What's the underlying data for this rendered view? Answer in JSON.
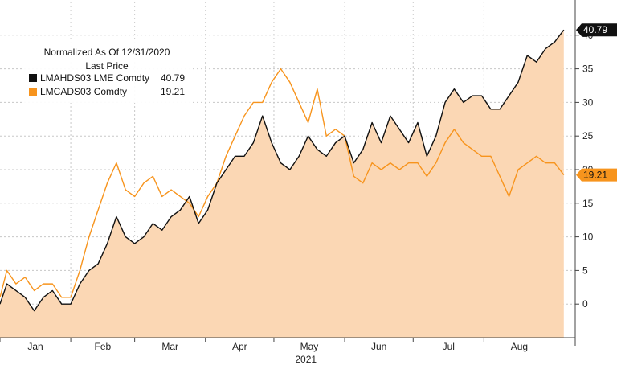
{
  "chart_data": {
    "type": "area",
    "title": "",
    "xlabel": "2021",
    "ylabel": "",
    "ylim": [
      -5,
      45
    ],
    "yticks": [
      0,
      5,
      10,
      15,
      20,
      25,
      30,
      35,
      40
    ],
    "months": [
      "Jan",
      "Feb",
      "Mar",
      "Apr",
      "May",
      "Jun",
      "Jul",
      "Aug"
    ],
    "x_start": "2021-01-01",
    "x_end": "2021-09-10",
    "grid": true,
    "legend_position": "top-left",
    "legend": {
      "header": [
        "Normalized As Of 12/31/2020",
        "Last Price"
      ],
      "entries": [
        {
          "label": "LMAHDS03 LME Comdty",
          "value": "40.79",
          "color": "#111111"
        },
        {
          "label": "LMCADS03 Comdty",
          "value": "19.21",
          "color": "#f7941d"
        }
      ]
    },
    "colors": {
      "aluminium_line": "#111111",
      "area_fill": "#fbd7b4",
      "copper_line": "#f7941d"
    },
    "series": [
      {
        "name": "LMAHDS03 LME Comdty",
        "last_value": "40.79",
        "dates": [
          "2021-01-01",
          "2021-01-04",
          "2021-01-08",
          "2021-01-12",
          "2021-01-16",
          "2021-01-20",
          "2021-01-24",
          "2021-01-28",
          "2021-02-01",
          "2021-02-05",
          "2021-02-09",
          "2021-02-13",
          "2021-02-17",
          "2021-02-21",
          "2021-02-25",
          "2021-03-01",
          "2021-03-05",
          "2021-03-09",
          "2021-03-13",
          "2021-03-17",
          "2021-03-21",
          "2021-03-25",
          "2021-03-29",
          "2021-04-02",
          "2021-04-06",
          "2021-04-10",
          "2021-04-14",
          "2021-04-18",
          "2021-04-22",
          "2021-04-26",
          "2021-04-30",
          "2021-05-04",
          "2021-05-08",
          "2021-05-12",
          "2021-05-16",
          "2021-05-20",
          "2021-05-24",
          "2021-05-28",
          "2021-06-01",
          "2021-06-05",
          "2021-06-09",
          "2021-06-13",
          "2021-06-17",
          "2021-06-21",
          "2021-06-25",
          "2021-06-29",
          "2021-07-03",
          "2021-07-07",
          "2021-07-11",
          "2021-07-15",
          "2021-07-19",
          "2021-07-23",
          "2021-07-27",
          "2021-07-31",
          "2021-08-04",
          "2021-08-08",
          "2021-08-12",
          "2021-08-16",
          "2021-08-20",
          "2021-08-24",
          "2021-08-28",
          "2021-09-01",
          "2021-09-05"
        ],
        "values": [
          0,
          3,
          2,
          1,
          -1,
          1,
          2,
          0,
          0,
          3,
          5,
          6,
          9,
          13,
          10,
          9,
          10,
          12,
          11,
          13,
          14,
          16,
          12,
          14,
          18,
          20,
          22,
          22,
          24,
          28,
          24,
          21,
          20,
          22,
          25,
          23,
          22,
          24,
          25,
          21,
          23,
          27,
          24,
          28,
          26,
          24,
          27,
          22,
          25,
          30,
          32,
          30,
          31,
          31,
          29,
          29,
          31,
          33,
          37,
          36,
          38,
          39,
          40.79
        ]
      },
      {
        "name": "LMCADS03 Comdty",
        "last_value": "19.21",
        "dates": [
          "2021-01-01",
          "2021-01-04",
          "2021-01-08",
          "2021-01-12",
          "2021-01-16",
          "2021-01-20",
          "2021-01-24",
          "2021-01-28",
          "2021-02-01",
          "2021-02-05",
          "2021-02-09",
          "2021-02-13",
          "2021-02-17",
          "2021-02-21",
          "2021-02-25",
          "2021-03-01",
          "2021-03-05",
          "2021-03-09",
          "2021-03-13",
          "2021-03-17",
          "2021-03-21",
          "2021-03-25",
          "2021-03-29",
          "2021-04-02",
          "2021-04-06",
          "2021-04-10",
          "2021-04-14",
          "2021-04-18",
          "2021-04-22",
          "2021-04-26",
          "2021-04-30",
          "2021-05-04",
          "2021-05-08",
          "2021-05-12",
          "2021-05-16",
          "2021-05-20",
          "2021-05-24",
          "2021-05-28",
          "2021-06-01",
          "2021-06-05",
          "2021-06-09",
          "2021-06-13",
          "2021-06-17",
          "2021-06-21",
          "2021-06-25",
          "2021-06-29",
          "2021-07-03",
          "2021-07-07",
          "2021-07-11",
          "2021-07-15",
          "2021-07-19",
          "2021-07-23",
          "2021-07-27",
          "2021-07-31",
          "2021-08-04",
          "2021-08-08",
          "2021-08-12",
          "2021-08-16",
          "2021-08-20",
          "2021-08-24",
          "2021-08-28",
          "2021-09-01",
          "2021-09-05"
        ],
        "values": [
          1,
          5,
          3,
          4,
          2,
          3,
          3,
          1,
          1,
          5,
          10,
          14,
          18,
          21,
          17,
          16,
          18,
          19,
          16,
          17,
          16,
          15,
          13,
          16,
          18,
          22,
          25,
          28,
          30,
          30,
          33,
          35,
          33,
          30,
          27,
          32,
          25,
          26,
          25,
          19,
          18,
          21,
          20,
          21,
          20,
          21,
          21,
          19,
          21,
          24,
          26,
          24,
          23,
          22,
          22,
          19,
          16,
          20,
          21,
          22,
          21,
          21,
          19.21
        ]
      }
    ]
  }
}
